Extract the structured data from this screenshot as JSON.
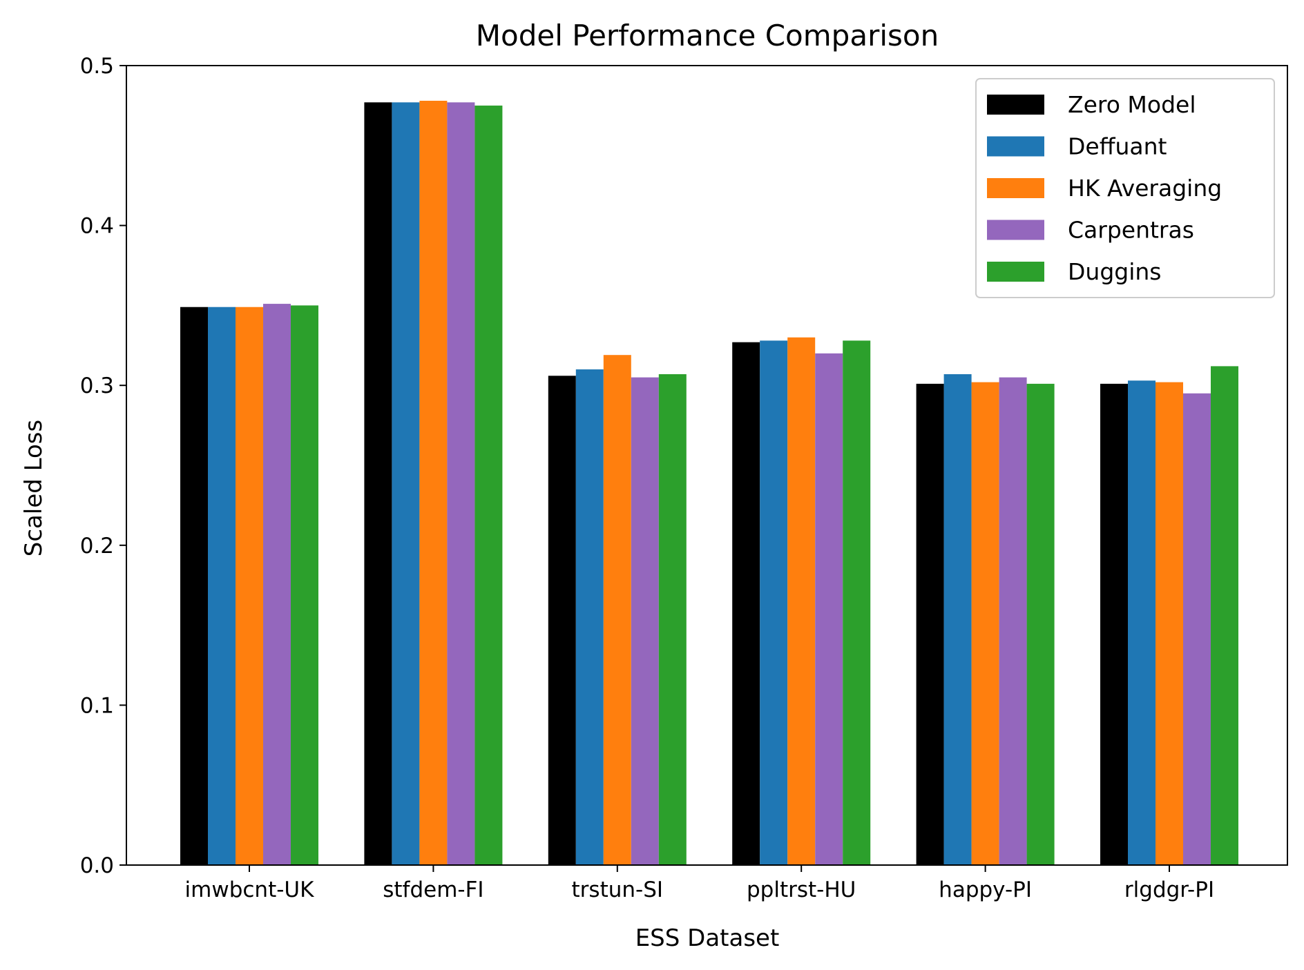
{
  "chart_data": {
    "type": "bar",
    "title": "Model Performance Comparison",
    "xlabel": "ESS Dataset",
    "ylabel": "Scaled Loss",
    "ylim": [
      0,
      0.5
    ],
    "yticks": [
      "0.0",
      "0.1",
      "0.2",
      "0.3",
      "0.4",
      "0.5"
    ],
    "ytick_values": [
      0,
      0.1,
      0.2,
      0.3,
      0.4,
      0.5
    ],
    "grid": false,
    "legend_position": "top-right",
    "categories": [
      "imwbcnt-UK",
      "stfdem-FI",
      "trstun-SI",
      "ppltrst-HU",
      "happy-PI",
      "rlgdgr-PI"
    ],
    "series": [
      {
        "name": "Zero Model",
        "color": "#000000",
        "values": [
          0.349,
          0.477,
          0.306,
          0.327,
          0.301,
          0.301
        ]
      },
      {
        "name": "Deffuant",
        "color": "#1f77b4",
        "values": [
          0.349,
          0.477,
          0.31,
          0.328,
          0.307,
          0.303
        ]
      },
      {
        "name": "HK Averaging",
        "color": "#ff7f0e",
        "values": [
          0.349,
          0.478,
          0.319,
          0.33,
          0.302,
          0.302
        ]
      },
      {
        "name": "Carpentras",
        "color": "#9467bd",
        "values": [
          0.351,
          0.477,
          0.305,
          0.32,
          0.305,
          0.295
        ]
      },
      {
        "name": "Duggins",
        "color": "#2ca02c",
        "values": [
          0.35,
          0.475,
          0.307,
          0.328,
          0.301,
          0.312
        ]
      }
    ]
  }
}
